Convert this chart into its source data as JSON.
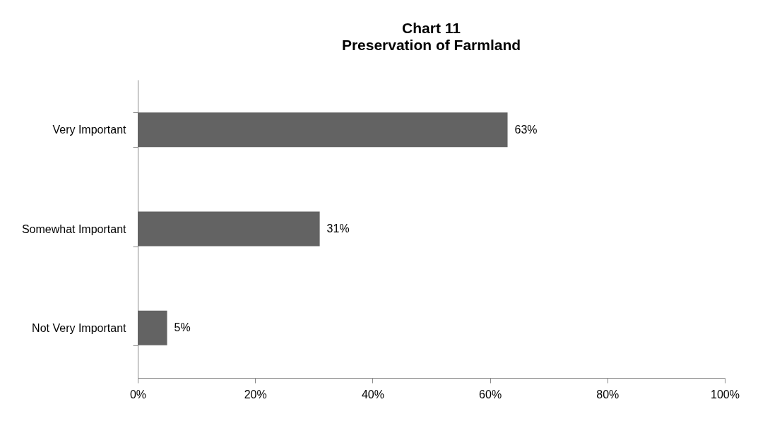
{
  "chart_data": {
    "type": "bar",
    "orientation": "horizontal",
    "title": "Chart 11",
    "subtitle": "Preservation of Farmland",
    "categories": [
      "Very Important",
      "Somewhat Important",
      "Not Very Important"
    ],
    "values": [
      63,
      31,
      5
    ],
    "value_labels": [
      "63%",
      "31%",
      "5%"
    ],
    "color": "#636363",
    "xlim": [
      0,
      100
    ],
    "xticks": [
      {
        "value": 0,
        "label": "0%"
      },
      {
        "value": 20,
        "label": "20%"
      },
      {
        "value": 40,
        "label": "40%"
      },
      {
        "value": 60,
        "label": "60%"
      },
      {
        "value": 80,
        "label": "80%"
      },
      {
        "value": 100,
        "label": "100%"
      }
    ],
    "grid": false
  }
}
